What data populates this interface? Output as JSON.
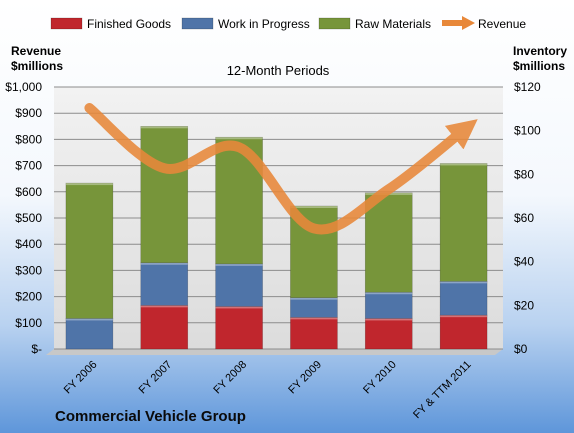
{
  "chart_data": {
    "type": "bar",
    "title": "12-Month Periods",
    "company": "Commercial Vehicle Group",
    "left_axis_label": [
      "Revenue",
      "$millions"
    ],
    "right_axis_label": [
      "Inventory",
      "$millions"
    ],
    "categories": [
      "FY 2006",
      "FY 2007",
      "FY 2008",
      "FY 2009",
      "FY 2010",
      "FY & TTM 2011"
    ],
    "left_ticks": [
      "$-",
      "$100",
      "$200",
      "$300",
      "$400",
      "$500",
      "$600",
      "$700",
      "$800",
      "$900",
      "$1,000"
    ],
    "right_ticks": [
      "$0",
      "$20",
      "$40",
      "$60",
      "$80",
      "$100",
      "$120"
    ],
    "left_ylim": [
      0,
      1000
    ],
    "right_ylim": [
      0,
      120
    ],
    "grid": true,
    "legend_position": "top",
    "series": [
      {
        "name": "Finished Goods",
        "axis": "right",
        "stack": true,
        "color": "#c0262d",
        "values": [
          0,
          20,
          19.5,
          14.5,
          14,
          15.5
        ]
      },
      {
        "name": "Work in Progress",
        "axis": "right",
        "stack": true,
        "color": "#4f74a8",
        "values": [
          14,
          19.5,
          19.5,
          9,
          12,
          15.5
        ]
      },
      {
        "name": "Raw Materials",
        "axis": "right",
        "stack": true,
        "color": "#77953a",
        "values": [
          62,
          62.5,
          58,
          42,
          45.5,
          54
        ]
      },
      {
        "name": "Revenue",
        "axis": "left",
        "type": "line",
        "color": "#e8883a",
        "values": [
          920,
          690,
          770,
          460,
          610,
          835
        ]
      }
    ]
  }
}
